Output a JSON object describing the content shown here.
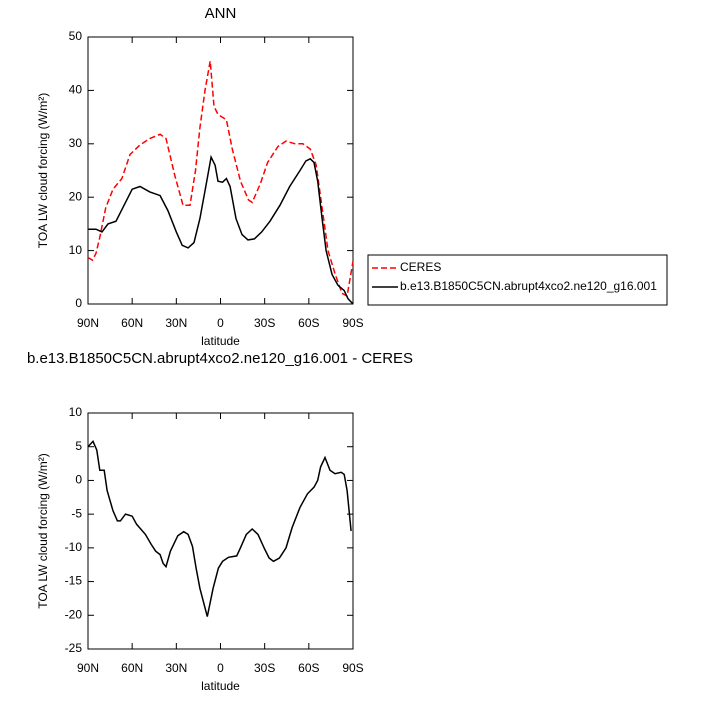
{
  "chart_data": [
    {
      "type": "line",
      "title": "ANN",
      "xlabel": "latitude",
      "ylabel": "TOA LW cloud forcing (W/m²)",
      "xlim": [
        90,
        -90
      ],
      "xticks": [
        {
          "value": 90,
          "label": "90N"
        },
        {
          "value": 60,
          "label": "60N"
        },
        {
          "value": 30,
          "label": "30N"
        },
        0,
        {
          "value": -30,
          "label": "30S"
        },
        {
          "value": -60,
          "label": "60S"
        },
        {
          "value": -90,
          "label": "90S"
        }
      ],
      "ylim": [
        0,
        50
      ],
      "yticks": [
        0,
        10,
        20,
        30,
        40,
        50
      ],
      "legend": "right",
      "series": [
        {
          "name": "CERES",
          "color": "#ff0000",
          "dash": true,
          "x": [
            90,
            87,
            84.6,
            82,
            78,
            73,
            67,
            61.5,
            54.7,
            48,
            41,
            37,
            31,
            25.5,
            20.7,
            17,
            14,
            10.5,
            7,
            4.4,
            1.7,
            -4,
            -8,
            -13.6,
            -19,
            -21.5,
            -27,
            -32,
            -39,
            -44.5,
            -50.6,
            -56,
            -61,
            -65,
            -69,
            -73,
            -78,
            -82.5,
            -86,
            -90
          ],
          "values": [
            8.7,
            8.2,
            9.5,
            12.5,
            18,
            21.5,
            23.5,
            28,
            29.8,
            31,
            31.8,
            31,
            24,
            18.5,
            18.5,
            25,
            33,
            40,
            45.5,
            37,
            35.5,
            34.5,
            29,
            23,
            19.5,
            19,
            22.5,
            26.5,
            29.5,
            30.5,
            30,
            30,
            29,
            26,
            18,
            10,
            5.5,
            2,
            1.5,
            8
          ]
        },
        {
          "name": "b.e13.B1850C5CN.abrupt4xco2.ne120_g16.001",
          "color": "#000000",
          "dash": false,
          "x": [
            90,
            84.6,
            80.5,
            76.4,
            71,
            65.5,
            60,
            54.7,
            48,
            41,
            35.7,
            30,
            26,
            22,
            18,
            14,
            10,
            6.4,
            3.7,
            1.7,
            -1.4,
            -4,
            -6.5,
            -10.5,
            -14.6,
            -18.7,
            -23,
            -28,
            -33.6,
            -40.4,
            -47,
            -54,
            -58,
            -61,
            -63.5,
            -66,
            -69,
            -71.7,
            -75.8,
            -79.8,
            -84,
            -86.6,
            -90
          ],
          "values": [
            14,
            14,
            13.5,
            15,
            15.5,
            18.5,
            21.5,
            22,
            21,
            20.3,
            17.5,
            13.5,
            11,
            10.5,
            11.5,
            16,
            22,
            27.5,
            26,
            23,
            22.8,
            23.5,
            22,
            16,
            13,
            12,
            12.2,
            13.5,
            15.5,
            18.5,
            22,
            25,
            26.8,
            27.2,
            26.5,
            23,
            16,
            10,
            5.5,
            3.5,
            2.5,
            1,
            0
          ]
        }
      ]
    },
    {
      "type": "line",
      "title": "b.e13.B1850C5CN.abrupt4xco2.ne120_g16.001 - CERES",
      "xlabel": "latitude",
      "ylabel": "TOA LW cloud forcing (W/m²)",
      "xlim": [
        90,
        -90
      ],
      "xticks": [
        {
          "value": 90,
          "label": "90N"
        },
        {
          "value": 60,
          "label": "60N"
        },
        {
          "value": 30,
          "label": "30N"
        },
        0,
        {
          "value": -30,
          "label": "30S"
        },
        {
          "value": -60,
          "label": "60S"
        },
        {
          "value": -90,
          "label": "90S"
        }
      ],
      "ylim": [
        -25,
        10
      ],
      "yticks": [
        -25,
        -20,
        -15,
        -10,
        -5,
        0,
        5,
        10
      ],
      "color": "#000000",
      "x": [
        90,
        86.6,
        84,
        82,
        79,
        77,
        73,
        70,
        68,
        64.5,
        60,
        57,
        51,
        47,
        44,
        41,
        39,
        37,
        34,
        29,
        25,
        22,
        19,
        16.6,
        14,
        9,
        5,
        1.4,
        -1.4,
        -5.4,
        -11,
        -13.5,
        -17.5,
        -21.5,
        -25.5,
        -29.6,
        -33,
        -36,
        -40,
        -44.5,
        -48.6,
        -54,
        -59,
        -63.5,
        -66,
        -68,
        -71,
        -74.4,
        -77.8,
        -82,
        -84,
        -86,
        -88.7
      ],
      "values": [
        5,
        5.8,
        4.5,
        1.5,
        1.5,
        -1.5,
        -4.5,
        -6,
        -6,
        -5,
        -5.3,
        -6.5,
        -8,
        -9.5,
        -10.5,
        -11,
        -12.3,
        -12.8,
        -10.5,
        -8.2,
        -7.6,
        -8,
        -9.8,
        -13,
        -16,
        -20.2,
        -16,
        -13,
        -12,
        -11.4,
        -11.2,
        -10,
        -8,
        -7.2,
        -8,
        -10,
        -11.5,
        -12,
        -11.5,
        -10,
        -7,
        -4,
        -2,
        -1,
        0,
        2,
        3.4,
        1.5,
        1,
        1.2,
        0.9,
        -1.5,
        -7.5
      ]
    }
  ]
}
